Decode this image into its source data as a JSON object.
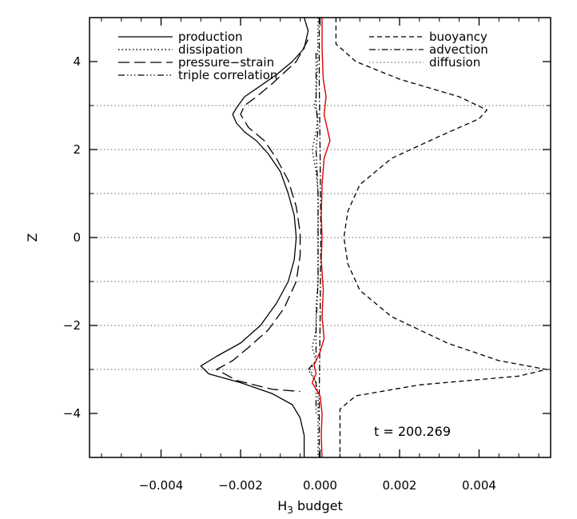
{
  "chart_data": {
    "type": "line",
    "xlabel": "H",
    "xlabel_sub": "3",
    "xlabel_rest": " budget",
    "ylabel": "Z",
    "xlim": [
      -0.0058,
      0.0058
    ],
    "ylim": [
      -5,
      5
    ],
    "x_ticks": [
      -0.004,
      -0.002,
      0.0,
      0.002,
      0.004
    ],
    "x_tick_labels": [
      "−0.004",
      "−0.002",
      "0.000",
      "0.002",
      "0.004"
    ],
    "y_ticks": [
      -4,
      -2,
      0,
      2,
      4
    ],
    "y_tick_labels": [
      "−4",
      "−2",
      "0",
      "2",
      "4"
    ],
    "reference_lines_z": [
      3,
      2,
      1,
      0,
      -1,
      -2,
      -3
    ],
    "annotation": "t = 200.269",
    "legend_left": [
      "production",
      "dissipation",
      "pressure−strain",
      "triple correlation"
    ],
    "legend_right": [
      "buoyancy",
      "advection",
      "diffusion"
    ],
    "series": [
      {
        "name": "production",
        "style": "solid",
        "color": "#000000",
        "points": [
          [
            -0.0004,
            5
          ],
          [
            -0.0003,
            4.7
          ],
          [
            -0.0004,
            4.3
          ],
          [
            -0.0007,
            4.0
          ],
          [
            -0.0011,
            3.7
          ],
          [
            -0.0015,
            3.45
          ],
          [
            -0.0019,
            3.2
          ],
          [
            -0.0021,
            2.95
          ],
          [
            -0.0022,
            2.8
          ],
          [
            -0.0021,
            2.6
          ],
          [
            -0.0019,
            2.4
          ],
          [
            -0.0016,
            2.2
          ],
          [
            -0.0013,
            1.9
          ],
          [
            -0.001,
            1.5
          ],
          [
            -0.0008,
            1.0
          ],
          [
            -0.00065,
            0.5
          ],
          [
            -0.0006,
            0
          ],
          [
            -0.00065,
            -0.5
          ],
          [
            -0.0008,
            -1.0
          ],
          [
            -0.0011,
            -1.5
          ],
          [
            -0.0015,
            -2.0
          ],
          [
            -0.002,
            -2.4
          ],
          [
            -0.0026,
            -2.7
          ],
          [
            -0.003,
            -2.92
          ],
          [
            -0.0028,
            -3.1
          ],
          [
            -0.002,
            -3.3
          ],
          [
            -0.0012,
            -3.55
          ],
          [
            -0.0007,
            -3.8
          ],
          [
            -0.0005,
            -4.1
          ],
          [
            -0.0004,
            -4.5
          ],
          [
            -0.0004,
            -5
          ]
        ]
      },
      {
        "name": "dissipation",
        "style": "dotted",
        "color": "#000000",
        "points": [
          [
            -5e-05,
            5
          ],
          [
            -6e-05,
            4
          ],
          [
            -0.0001,
            3.2
          ],
          [
            -0.00015,
            3.0
          ],
          [
            -5e-05,
            2.8
          ],
          [
            -0.0001,
            2.4
          ],
          [
            -0.0002,
            2.0
          ],
          [
            -0.0001,
            1.5
          ],
          [
            -5e-05,
            1.0
          ],
          [
            -5e-05,
            0
          ],
          [
            -5e-05,
            -1.0
          ],
          [
            -0.0001,
            -1.6
          ],
          [
            -0.0001,
            -2.1
          ],
          [
            -0.0002,
            -2.5
          ],
          [
            -0.0001,
            -2.8
          ],
          [
            -0.00025,
            -3.0
          ],
          [
            -0.0001,
            -3.3
          ],
          [
            -5e-05,
            -3.6
          ],
          [
            -5e-05,
            -5
          ]
        ]
      },
      {
        "name": "pressure−strain",
        "style": "longdash",
        "color": "#000000",
        "points": [
          [
            -0.0003,
            4.5
          ],
          [
            -0.0006,
            4.0
          ],
          [
            -0.0012,
            3.5
          ],
          [
            -0.0016,
            3.2
          ],
          [
            -0.0019,
            3.0
          ],
          [
            -0.002,
            2.8
          ],
          [
            -0.0018,
            2.5
          ],
          [
            -0.0014,
            2.2
          ],
          [
            -0.0011,
            1.8
          ],
          [
            -0.0008,
            1.3
          ],
          [
            -0.0006,
            0.7
          ],
          [
            -0.0005,
            0.1
          ],
          [
            -0.0005,
            -0.4
          ],
          [
            -0.0006,
            -1.0
          ],
          [
            -0.0009,
            -1.6
          ],
          [
            -0.0013,
            -2.1
          ],
          [
            -0.0018,
            -2.5
          ],
          [
            -0.0022,
            -2.8
          ],
          [
            -0.0026,
            -3.0
          ],
          [
            -0.0021,
            -3.25
          ],
          [
            -0.0012,
            -3.45
          ],
          [
            -0.0005,
            -3.5
          ]
        ]
      },
      {
        "name": "triple correlation",
        "style": "dashdotdot",
        "color": "#000000",
        "points": [
          [
            -0.0001,
            4.2
          ],
          [
            -0.0001,
            3.5
          ],
          [
            -0.0001,
            3.0
          ],
          [
            -5e-05,
            2.5
          ],
          [
            -0.0001,
            2.0
          ],
          [
            -5e-05,
            1.0
          ],
          [
            -5e-05,
            0
          ],
          [
            -5e-05,
            -1.0
          ],
          [
            -0.0001,
            -2.0
          ],
          [
            -0.0001,
            -2.8
          ],
          [
            -0.0003,
            -3.0
          ],
          [
            -0.0001,
            -3.3
          ],
          [
            -0.0001,
            -4.0
          ]
        ]
      },
      {
        "name": "buoyancy",
        "style": "shortdash",
        "color": "#000000",
        "points": [
          [
            0.0004,
            5
          ],
          [
            0.0004,
            4.4
          ],
          [
            0.0009,
            4.0
          ],
          [
            0.002,
            3.6
          ],
          [
            0.0035,
            3.2
          ],
          [
            0.0042,
            2.9
          ],
          [
            0.004,
            2.7
          ],
          [
            0.003,
            2.3
          ],
          [
            0.0018,
            1.8
          ],
          [
            0.001,
            1.2
          ],
          [
            0.0007,
            0.6
          ],
          [
            0.0006,
            0
          ],
          [
            0.0007,
            -0.6
          ],
          [
            0.001,
            -1.2
          ],
          [
            0.0018,
            -1.8
          ],
          [
            0.0032,
            -2.4
          ],
          [
            0.0045,
            -2.8
          ],
          [
            0.0057,
            -3.0
          ],
          [
            0.005,
            -3.15
          ],
          [
            0.0025,
            -3.35
          ],
          [
            0.0009,
            -3.6
          ],
          [
            0.0005,
            -3.9
          ],
          [
            0.0005,
            -5
          ]
        ]
      },
      {
        "name": "advection",
        "style": "dashdot",
        "color": "#000000",
        "points": [
          [
            -2e-05,
            5
          ],
          [
            -2e-05,
            3.5
          ],
          [
            0.0,
            2.0
          ],
          [
            2e-05,
            0
          ],
          [
            0.0,
            -2.0
          ],
          [
            -2e-05,
            -3.5
          ],
          [
            -2e-05,
            -5
          ]
        ]
      },
      {
        "name": "diffusion",
        "style": "graydot",
        "color": "#888888",
        "points": []
      },
      {
        "name": "",
        "style": "solid",
        "color": "#e00000",
        "points": [
          [
            5e-05,
            5
          ],
          [
            5e-05,
            4.3
          ],
          [
            8e-05,
            3.6
          ],
          [
            0.00015,
            3.2
          ],
          [
            0.0001,
            2.8
          ],
          [
            0.00025,
            2.2
          ],
          [
            0.0001,
            1.8
          ],
          [
            5e-05,
            1.2
          ],
          [
            3e-05,
            0.5
          ],
          [
            5e-05,
            0
          ],
          [
            3e-05,
            -0.5
          ],
          [
            8e-05,
            -1.2
          ],
          [
            5e-05,
            -1.8
          ],
          [
            0.0001,
            -2.3
          ],
          [
            0.0,
            -2.6
          ],
          [
            -0.00015,
            -2.9
          ],
          [
            -0.0001,
            -3.1
          ],
          [
            -0.0002,
            -3.3
          ],
          [
            0.0,
            -3.6
          ],
          [
            5e-05,
            -4.0
          ],
          [
            3e-05,
            -4.5
          ],
          [
            5e-05,
            -5
          ]
        ]
      }
    ]
  }
}
